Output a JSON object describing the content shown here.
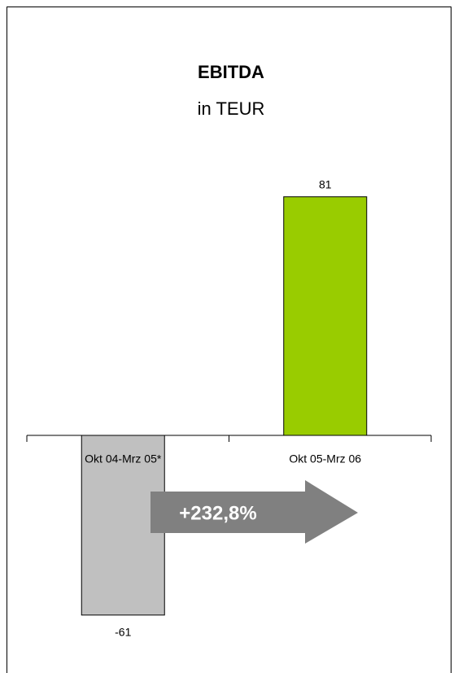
{
  "chart_data": {
    "type": "bar",
    "title": "EBITDA",
    "subtitle": "in TEUR",
    "categories": [
      "Okt 04-Mrz 05*",
      "Okt 05-Mrz 06"
    ],
    "values": [
      -61,
      81
    ],
    "colors": [
      "#c0c0c0",
      "#99cc00"
    ],
    "annotation": "+232,8%"
  }
}
